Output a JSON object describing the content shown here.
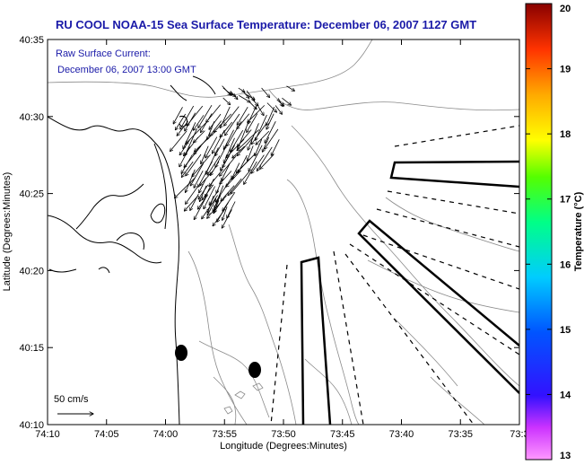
{
  "chart_data": {
    "type": "map",
    "title": "RU COOL  NOAA-15  Sea Surface Temperature:  December 06, 2007 1127 GMT",
    "annotation": {
      "line1": "Raw Surface Current:",
      "line2": "December 06, 2007 13:00 GMT"
    },
    "xlabel": "Longitude (Degrees:Minutes)",
    "ylabel": "Latitude (Degrees:Minutes)",
    "x_ticks": [
      "74:10",
      "74:05",
      "74:00",
      "73:55",
      "73:50",
      "73:45",
      "73:40",
      "73:35",
      "73:3"
    ],
    "y_ticks": [
      "40:10",
      "40:15",
      "40:20",
      "40:25",
      "40:30",
      "40:35"
    ],
    "xlim": [
      -74.1667,
      -73.5
    ],
    "ylim": [
      40.1667,
      40.5833
    ],
    "colorbar": {
      "label": "Temperature (°C)",
      "min": 13,
      "max": 20,
      "ticks": [
        "13",
        "14",
        "15",
        "16",
        "17",
        "18",
        "19",
        "20"
      ]
    },
    "scale_label": "50 cm/s",
    "colors": {
      "title": "#1a1aa8",
      "annotation": "#1a1aa8",
      "land_contours": "#707070"
    }
  }
}
